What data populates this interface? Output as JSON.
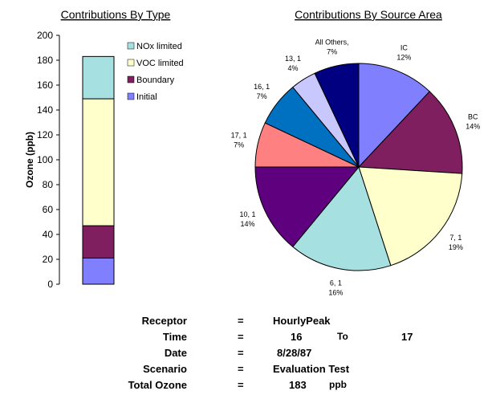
{
  "chart_data": [
    {
      "type": "bar",
      "stacked": true,
      "title": "Contributions By Type",
      "xlabel": "",
      "ylabel": "Ozone  (ppb)",
      "ylim": [
        0,
        200
      ],
      "yticks": [
        0,
        20,
        40,
        60,
        80,
        100,
        120,
        140,
        160,
        180,
        200
      ],
      "grid": false,
      "legend_position": "right",
      "categories": [
        ""
      ],
      "series": [
        {
          "name": "Initial",
          "values": [
            21
          ],
          "color": "#8080ff"
        },
        {
          "name": "Boundary",
          "values": [
            26
          ],
          "color": "#7f1f5f"
        },
        {
          "name": "VOC limited",
          "values": [
            102
          ],
          "color": "#ffffcc"
        },
        {
          "name": "NOx limited",
          "values": [
            34
          ],
          "color": "#a6e0e0"
        }
      ],
      "legend_order": [
        "NOx limited",
        "VOC limited",
        "Boundary",
        "Initial"
      ]
    },
    {
      "type": "pie",
      "title": "Contributions By Source Area",
      "start": "top",
      "direction": "clockwise",
      "slices": [
        {
          "name": "IC",
          "pct_label": "12%",
          "value": 12,
          "color": "#8080ff"
        },
        {
          "name": "BC",
          "pct_label": "14%",
          "value": 14,
          "color": "#7f1f5f"
        },
        {
          "name": "7, 1",
          "pct_label": "19%",
          "value": 19,
          "color": "#ffffcc"
        },
        {
          "name": "6, 1",
          "pct_label": "16%",
          "value": 16,
          "color": "#a6e0e0"
        },
        {
          "name": "10, 1",
          "pct_label": "14%",
          "value": 14,
          "color": "#5f007f"
        },
        {
          "name": "17, 1",
          "pct_label": "7%",
          "value": 7,
          "color": "#ff8080"
        },
        {
          "name": "16, 1",
          "pct_label": "7%",
          "value": 7,
          "color": "#0070c0"
        },
        {
          "name": "13, 1",
          "pct_label": "4%",
          "value": 4,
          "color": "#c8c8ff"
        },
        {
          "name": "All Others,",
          "pct_label": "7%",
          "value": 7,
          "color": "#000080"
        }
      ]
    }
  ],
  "info": {
    "receptor_label": "Receptor",
    "receptor_eq": "=",
    "receptor_value": "HourlyPeak",
    "time_label": "Time",
    "time_eq": "=",
    "time_from": "16",
    "time_to_label": "To",
    "time_to": "17",
    "date_label": "Date",
    "date_eq": "=",
    "date_value": "8/28/87",
    "scenario_label": "Scenario",
    "scenario_eq": "=",
    "scenario_value": "Evaluation Test",
    "total_label": "Total Ozone",
    "total_eq": "=",
    "total_value": "183",
    "total_unit": "ppb"
  }
}
